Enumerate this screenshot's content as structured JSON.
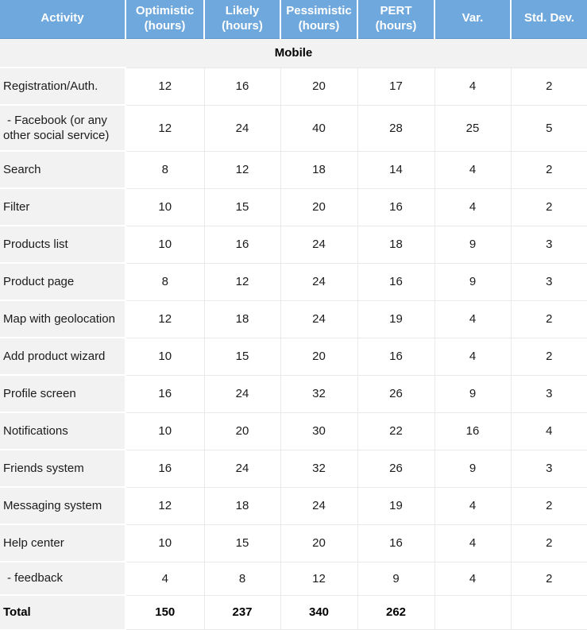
{
  "colors": {
    "header_background": "#6FA8DC",
    "header_text": "#FFFFFF",
    "header_separator": "#FFFFFF",
    "label_column_background": "#F2F2F2",
    "section_row_background": "#F2F2F2",
    "grid_border": "#E9E9E9",
    "body_text": "#1B1B1B"
  },
  "table": {
    "columns": [
      {
        "line1": "Activity",
        "line2": ""
      },
      {
        "line1": "Optimistic",
        "line2": "(hours)"
      },
      {
        "line1": "Likely",
        "line2": "(hours)"
      },
      {
        "line1": "Pessimistic",
        "line2": "(hours)"
      },
      {
        "line1": "PERT",
        "line2": "(hours)"
      },
      {
        "line1": "Var.",
        "line2": ""
      },
      {
        "line1": "Std. Dev.",
        "line2": ""
      }
    ],
    "section_label": "Mobile",
    "rows": [
      {
        "activity": "Registration/Auth.",
        "values": [
          "12",
          "16",
          "20",
          "17",
          "4",
          "2"
        ]
      },
      {
        "activity": "- Facebook (or any other social service)",
        "values": [
          "12",
          "24",
          "40",
          "28",
          "25",
          "5"
        ]
      },
      {
        "activity": "Search",
        "values": [
          "8",
          "12",
          "18",
          "14",
          "4",
          "2"
        ]
      },
      {
        "activity": "Filter",
        "values": [
          "10",
          "15",
          "20",
          "16",
          "4",
          "2"
        ]
      },
      {
        "activity": "Products list",
        "values": [
          "10",
          "16",
          "24",
          "18",
          "9",
          "3"
        ]
      },
      {
        "activity": "Product page",
        "values": [
          "8",
          "12",
          "24",
          "16",
          "9",
          "3"
        ]
      },
      {
        "activity": "Map with geolocation",
        "values": [
          "12",
          "18",
          "24",
          "19",
          "4",
          "2"
        ]
      },
      {
        "activity": "Add product wizard",
        "values": [
          "10",
          "15",
          "20",
          "16",
          "4",
          "2"
        ]
      },
      {
        "activity": "Profile screen",
        "values": [
          "16",
          "24",
          "32",
          "26",
          "9",
          "3"
        ]
      },
      {
        "activity": "Notifications",
        "values": [
          "10",
          "20",
          "30",
          "22",
          "16",
          "4"
        ]
      },
      {
        "activity": "Friends system",
        "values": [
          "16",
          "24",
          "32",
          "26",
          "9",
          "3"
        ]
      },
      {
        "activity": "Messaging system",
        "values": [
          "12",
          "18",
          "24",
          "19",
          "4",
          "2"
        ]
      },
      {
        "activity": "Help center",
        "values": [
          "10",
          "15",
          "20",
          "16",
          "4",
          "2"
        ]
      },
      {
        "activity": "- feedback",
        "values": [
          "4",
          "8",
          "12",
          "9",
          "4",
          "2"
        ]
      }
    ],
    "total_row": {
      "label": "Total",
      "values": [
        "150",
        "237",
        "340",
        "262",
        "",
        ""
      ]
    }
  }
}
